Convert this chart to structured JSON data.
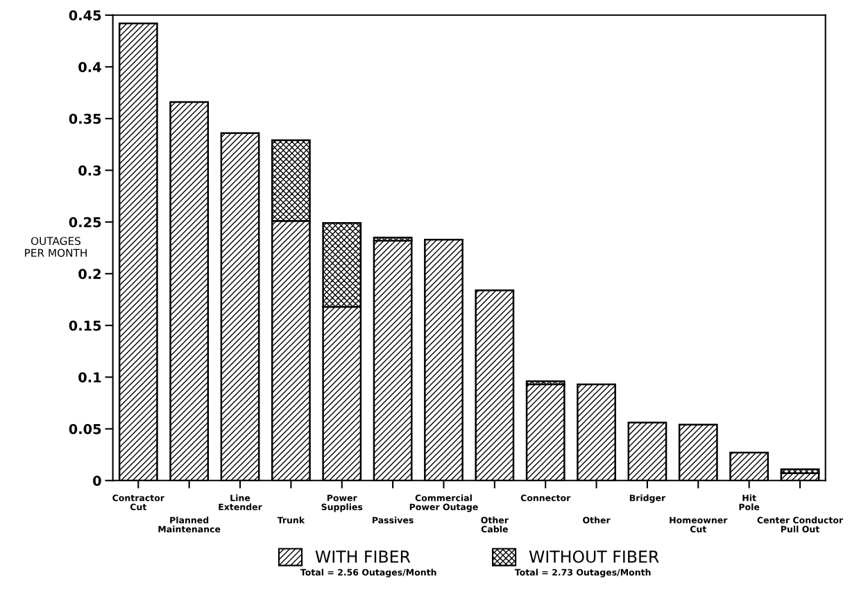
{
  "chart_data": {
    "type": "bar",
    "stacked": true,
    "ylabel": "OUTAGES\nPER MONTH",
    "categories": [
      "Contractor\nCut",
      "Planned\nMaintenance",
      "Line\nExtender",
      "Trunk",
      "Power\nSupplies",
      "Passives",
      "Commercial\nPower Outage",
      "Other\nCable",
      "Connector",
      "Other",
      "Bridger",
      "Homeowner\nCut",
      "Hit\nPole",
      "Center Conductor\nPull Out"
    ],
    "series": [
      {
        "name": "WITH FIBER",
        "color": "#000000",
        "values": [
          0.442,
          0.366,
          0.336,
          0.251,
          0.168,
          0.232,
          0.233,
          0.184,
          0.093,
          0.093,
          0.056,
          0.054,
          0.027,
          0.007
        ]
      },
      {
        "name": "WITHOUT FIBER",
        "color": "#000000",
        "values": [
          null,
          null,
          null,
          0.078,
          0.081,
          0.003,
          null,
          null,
          0.003,
          null,
          null,
          null,
          null,
          0.004
        ]
      }
    ],
    "ylim": [
      0,
      0.45
    ],
    "yticks": [
      0,
      0.05,
      0.1,
      0.15,
      0.2,
      0.25,
      0.3,
      0.35,
      0.4,
      0.45
    ],
    "legend": "bottom",
    "grid": false,
    "annotations": [
      "Total = 2.56 Outages/Month",
      "Total = 2.73 Outages/Month"
    ]
  }
}
